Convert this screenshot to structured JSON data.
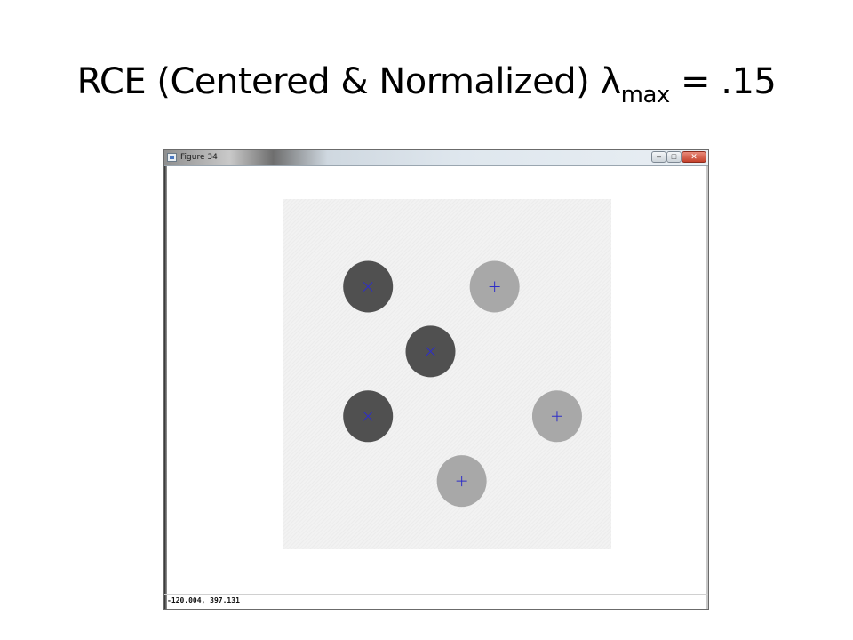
{
  "slide": {
    "title_main": "RCE (Centered & Normalized) λ",
    "title_sub": "max",
    "title_tail": " = .15"
  },
  "window": {
    "title": "Figure 34",
    "controls": {
      "minimize": "–",
      "maximize": "□",
      "close": "✕"
    }
  },
  "status": {
    "coordinates": "-120.004,  397.131"
  },
  "plot": {
    "colors": {
      "dark_disk": "#505050",
      "light_disk": "#a8a8a8",
      "marker": "#2e2ec8"
    },
    "icons": {
      "x_marker": "x-marker-icon",
      "plus_marker": "plus-marker-icon"
    },
    "points": [
      {
        "col": 0.26,
        "row": 0.25,
        "class": "dark",
        "marker": "x"
      },
      {
        "col": 0.645,
        "row": 0.25,
        "class": "light",
        "marker": "plus"
      },
      {
        "col": 0.45,
        "row": 0.435,
        "class": "dark",
        "marker": "x"
      },
      {
        "col": 0.26,
        "row": 0.62,
        "class": "dark",
        "marker": "x"
      },
      {
        "col": 0.835,
        "row": 0.62,
        "class": "light",
        "marker": "plus"
      },
      {
        "col": 0.545,
        "row": 0.805,
        "class": "light",
        "marker": "plus"
      }
    ]
  }
}
